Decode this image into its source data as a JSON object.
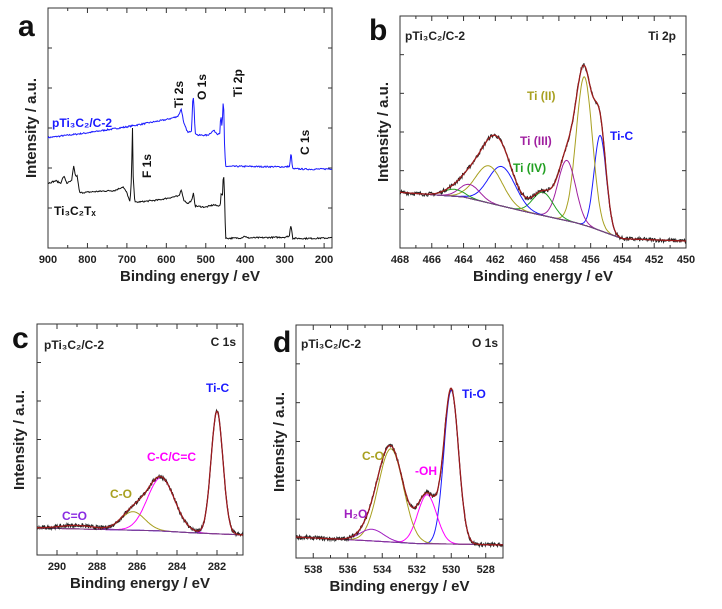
{
  "chart_data": [
    {
      "panel": "a",
      "type": "line",
      "xlabel": "Binding energy / eV",
      "ylabel": "Intensity / a.u.",
      "xlim": [
        900,
        180
      ],
      "x_reversed": true,
      "xticks": [
        "900",
        "800",
        "700",
        "600",
        "500",
        "400",
        "300",
        "200"
      ],
      "series": [
        {
          "name": "pTi₃C₂/C-2",
          "color": "#1a1aff",
          "points": [
            [
              900,
              0.46
            ],
            [
              800,
              0.48
            ],
            [
              700,
              0.505
            ],
            [
              600,
              0.535
            ],
            [
              578,
              0.545
            ],
            [
              570,
              0.55
            ],
            [
              562,
              0.58
            ],
            [
              556,
              0.52
            ],
            [
              545,
              0.48
            ],
            [
              536,
              0.49
            ],
            [
              533,
              0.62
            ],
            [
              531,
              0.63
            ],
            [
              527,
              0.48
            ],
            [
              520,
              0.47
            ],
            [
              495,
              0.47
            ],
            [
              480,
              0.49
            ],
            [
              470,
              0.475
            ],
            [
              464,
              0.48
            ],
            [
              462,
              0.56
            ],
            [
              459,
              0.5
            ],
            [
              456,
              0.6
            ],
            [
              455,
              0.64
            ],
            [
              453,
              0.45
            ],
            [
              450,
              0.34
            ],
            [
              400,
              0.34
            ],
            [
              300,
              0.338
            ],
            [
              287,
              0.34
            ],
            [
              285,
              0.39
            ],
            [
              283,
              0.385
            ],
            [
              280,
              0.33
            ],
            [
              230,
              0.328
            ],
            [
              182,
              0.33
            ]
          ]
        },
        {
          "name": "Ti₃C₂Tₓ",
          "color": "#111111",
          "points": [
            [
              900,
              0.27
            ],
            [
              880,
              0.28
            ],
            [
              868,
              0.27
            ],
            [
              860,
              0.3
            ],
            [
              852,
              0.27
            ],
            [
              840,
              0.28
            ],
            [
              835,
              0.34
            ],
            [
              830,
              0.3
            ],
            [
              826,
              0.3
            ],
            [
              820,
              0.23
            ],
            [
              780,
              0.235
            ],
            [
              730,
              0.24
            ],
            [
              710,
              0.255
            ],
            [
              700,
              0.23
            ],
            [
              692,
              0.19
            ],
            [
              688,
              0.3
            ],
            [
              686,
              0.53
            ],
            [
              684,
              0.3
            ],
            [
              680,
              0.19
            ],
            [
              620,
              0.2
            ],
            [
              575,
              0.215
            ],
            [
              568,
              0.215
            ],
            [
              562,
              0.245
            ],
            [
              556,
              0.2
            ],
            [
              545,
              0.185
            ],
            [
              535,
              0.2
            ],
            [
              531,
              0.23
            ],
            [
              527,
              0.175
            ],
            [
              500,
              0.17
            ],
            [
              480,
              0.18
            ],
            [
              470,
              0.175
            ],
            [
              463,
              0.18
            ],
            [
              461,
              0.23
            ],
            [
              458,
              0.21
            ],
            [
              455,
              0.325
            ],
            [
              452,
              0.2
            ],
            [
              450,
              0.04
            ],
            [
              410,
              0.042
            ],
            [
              401,
              0.05
            ],
            [
              395,
              0.042
            ],
            [
              300,
              0.045
            ],
            [
              288,
              0.05
            ],
            [
              285,
              0.095
            ],
            [
              282,
              0.08
            ],
            [
              280,
              0.04
            ],
            [
              230,
              0.04
            ],
            [
              182,
              0.042
            ]
          ]
        }
      ],
      "annotations": [
        {
          "text": "pTi₃C₂/C-2",
          "color": "#1a1aff"
        },
        {
          "text": "Ti₃C₂Tₓ",
          "color": "#111111"
        },
        {
          "text": "Ti 2s",
          "color": "#111111"
        },
        {
          "text": "O 1s",
          "color": "#111111"
        },
        {
          "text": "Ti 2p",
          "color": "#111111"
        },
        {
          "text": "F 1s",
          "color": "#111111"
        },
        {
          "text": "C 1s",
          "color": "#111111"
        }
      ]
    },
    {
      "panel": "b",
      "type": "line",
      "title": "Ti 2p",
      "sample": "pTi₃C₂/C-2",
      "xlabel": "Binding energy / eV",
      "ylabel": "Intensity / a.u.",
      "xlim": [
        468,
        450
      ],
      "x_reversed": true,
      "xticks": [
        "468",
        "466",
        "464",
        "462",
        "460",
        "458",
        "456",
        "454",
        "452",
        "450"
      ],
      "background": [
        [
          468,
          0.24
        ],
        [
          464,
          0.22
        ],
        [
          460,
          0.155
        ],
        [
          457,
          0.11
        ],
        [
          456,
          0.09
        ],
        [
          455,
          0.065
        ],
        [
          454,
          0.04
        ],
        [
          450,
          0.03
        ]
      ],
      "components": [
        {
          "center": 455.4,
          "height": 0.41,
          "fwhm": 0.9,
          "color": "#1a1aff"
        },
        {
          "center": 456.4,
          "height": 0.64,
          "fwhm": 1.2,
          "color": "#a8a020"
        },
        {
          "center": 457.5,
          "height": 0.26,
          "fwhm": 1.3,
          "color": "#a020a0"
        },
        {
          "center": 459.0,
          "height": 0.1,
          "fwhm": 1.5,
          "color": "#22a022"
        },
        {
          "center": 461.6,
          "height": 0.17,
          "fwhm": 2.0,
          "color": "#1a1aff"
        },
        {
          "center": 462.4,
          "height": 0.16,
          "fwhm": 2.0,
          "color": "#a8a020"
        },
        {
          "center": 463.6,
          "height": 0.06,
          "fwhm": 1.5,
          "color": "#a020a0"
        },
        {
          "center": 464.6,
          "height": 0.03,
          "fwhm": 1.5,
          "color": "#22a022"
        }
      ],
      "envelope_color": "#9b1c1c",
      "data_color": "#222222",
      "annotations": [
        {
          "text": "Ti (II)",
          "color": "#a8a020"
        },
        {
          "text": "Ti (III)",
          "color": "#a020a0"
        },
        {
          "text": "Ti (IV)",
          "color": "#22a022"
        },
        {
          "text": "Ti-C",
          "color": "#1a1aff"
        }
      ]
    },
    {
      "panel": "c",
      "type": "line",
      "title": "C 1s",
      "sample": "pTi₃C₂/C-2",
      "xlabel": "Binding energy / eV",
      "ylabel": "Intensity / a.u.",
      "xlim": [
        291,
        280.7
      ],
      "x_reversed": true,
      "xticks": [
        "290",
        "288",
        "286",
        "284",
        "282"
      ],
      "background": [
        [
          291,
          0.117
        ],
        [
          285,
          0.105
        ],
        [
          283,
          0.095
        ],
        [
          280.7,
          0.087
        ]
      ],
      "components": [
        {
          "center": 282.0,
          "height": 0.53,
          "fwhm": 0.7,
          "color": "#1a1aff"
        },
        {
          "center": 284.8,
          "height": 0.23,
          "fwhm": 1.6,
          "color": "#ff00ff"
        },
        {
          "center": 286.2,
          "height": 0.08,
          "fwhm": 1.4,
          "color": "#a8a020"
        },
        {
          "center": 289.0,
          "height": 0.015,
          "fwhm": 2.0,
          "color": "#8a2be2"
        }
      ],
      "envelope_color": "#9b1c1c",
      "data_color": "#222222",
      "annotations": [
        {
          "text": "Ti-C",
          "color": "#1a1aff"
        },
        {
          "text": "C-C/C=C",
          "color": "#ff00ff"
        },
        {
          "text": "C-O",
          "color": "#a8a020"
        },
        {
          "text": "C=O",
          "color": "#8a2be2"
        }
      ]
    },
    {
      "panel": "d",
      "type": "line",
      "title": "O 1s",
      "sample": "pTi₃C₂/C-2",
      "xlabel": "Binding energy / eV",
      "ylabel": "Intensity / a.u.",
      "xlim": [
        539,
        527
      ],
      "x_reversed": true,
      "xticks": [
        "538",
        "536",
        "534",
        "532",
        "530",
        "528"
      ],
      "background": [
        [
          539,
          0.09
        ],
        [
          535,
          0.075
        ],
        [
          532,
          0.062
        ],
        [
          530,
          0.06
        ],
        [
          527,
          0.056
        ]
      ],
      "components": [
        {
          "center": 530.0,
          "height": 0.66,
          "fwhm": 1.0,
          "color": "#1a1aff"
        },
        {
          "center": 531.4,
          "height": 0.21,
          "fwhm": 1.3,
          "color": "#ff00ff"
        },
        {
          "center": 533.5,
          "height": 0.4,
          "fwhm": 1.7,
          "color": "#a8a020"
        },
        {
          "center": 534.6,
          "height": 0.05,
          "fwhm": 1.6,
          "color": "#a020c0"
        }
      ],
      "envelope_color": "#9b1c1c",
      "data_color": "#222222",
      "annotations": [
        {
          "text": "Ti-O",
          "color": "#1a1aff"
        },
        {
          "text": "-OH",
          "color": "#ff00ff"
        },
        {
          "text": "C-O",
          "color": "#a8a020"
        },
        {
          "text": "H₂O",
          "color": "#a020c0"
        }
      ]
    }
  ]
}
